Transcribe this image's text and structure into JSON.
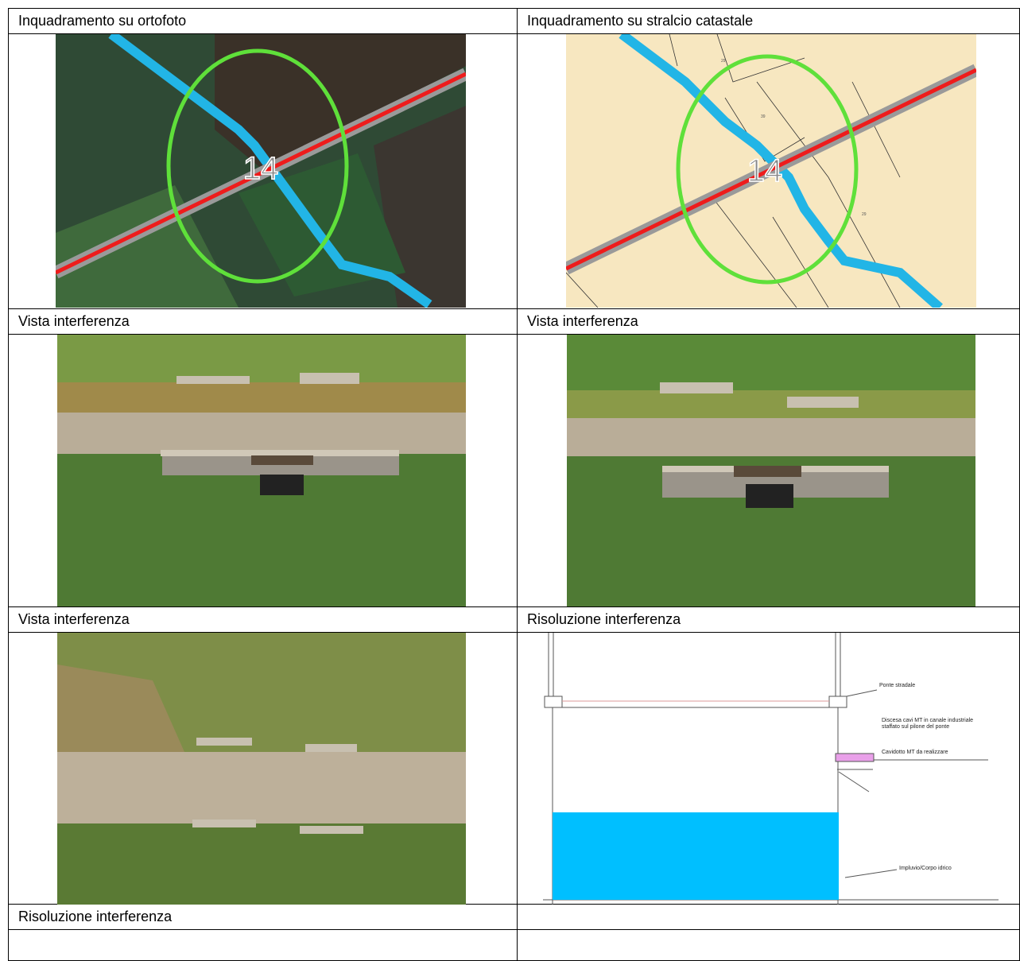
{
  "table": {
    "rows": [
      [
        "Inquadramento su ortofoto",
        "Inquadramento su stralcio catastale"
      ],
      [
        "Vista interferenza",
        "Vista interferenza"
      ],
      [
        "Vista interferenza",
        "Risoluzione interferenza"
      ],
      [
        "Risoluzione interferenza"
      ]
    ]
  },
  "ortofoto": {
    "label": "14"
  },
  "catastale": {
    "label": "14",
    "parcels": [
      "29",
      "39",
      "29"
    ]
  },
  "section": {
    "labels": [
      "Ponte stradale",
      "Discesa cavi MT in canale industriale",
      "staffato sul pilone del ponte",
      "Cavidotto MT da realizzare",
      "Impluvio/Corpo idrico"
    ]
  }
}
